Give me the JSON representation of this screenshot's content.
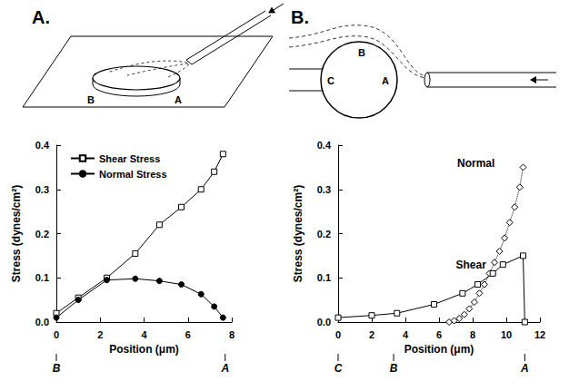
{
  "diagrams": [
    {
      "letter": "A.",
      "labels": [
        "B",
        "A"
      ]
    },
    {
      "letter": "B.",
      "labels": [
        "C",
        "B",
        "A"
      ]
    }
  ],
  "chart_data": [
    {
      "type": "line",
      "x_label": "Position (μm)",
      "y_label": "Stress (dynes/cm²)",
      "xlim": [
        0,
        8
      ],
      "xticks": [
        0,
        2,
        4,
        6,
        8
      ],
      "ylim": [
        0,
        0.4
      ],
      "yticks": [
        {
          "value": 0,
          "label": "0.0"
        },
        0.1,
        0.2,
        0.3,
        0.4
      ],
      "grid": false,
      "legend": "top-left",
      "series": [
        {
          "name": "Shear Stress",
          "color": "#000000",
          "marker": "open_square",
          "line_style": "solid",
          "x": [
            0,
            1,
            2.3,
            3.6,
            4.7,
            5.7,
            6.6,
            7.2,
            7.6
          ],
          "values": [
            0.02,
            0.055,
            0.1,
            0.155,
            0.22,
            0.26,
            0.3,
            0.34,
            0.38
          ]
        },
        {
          "name": "Normal Stress",
          "color": "#000000",
          "marker": "circle",
          "line_style": "solid",
          "x": [
            0,
            1,
            2.3,
            3.6,
            4.7,
            5.7,
            6.6,
            7.2,
            7.6
          ],
          "values": [
            0.01,
            0.05,
            0.095,
            0.098,
            0.093,
            0.085,
            0.063,
            0.035,
            0.01
          ]
        }
      ],
      "x_marks": [
        {
          "x": 0,
          "label": "B"
        },
        {
          "x": 7.7,
          "label": "A"
        }
      ]
    },
    {
      "type": "line",
      "x_label": "Position (μm)",
      "y_label": "Stress (dynes/cm²)",
      "xlim": [
        0,
        12
      ],
      "xticks": [
        0,
        2,
        4,
        6,
        8,
        10,
        12
      ],
      "ylim": [
        0,
        0.4
      ],
      "yticks": [
        {
          "value": 0,
          "label": "0.0"
        },
        0.1,
        0.2,
        0.3,
        0.4
      ],
      "grid": false,
      "series": [
        {
          "color": "#000000",
          "marker": "open_diamond",
          "line_style": "dotted",
          "x": [
            6.6,
            6.9,
            7.2,
            7.5,
            7.8,
            8.1,
            8.4,
            8.7,
            9.0,
            9.3,
            9.6,
            9.9,
            10.2,
            10.5,
            10.8,
            11.0
          ],
          "values": [
            0.0,
            0.003,
            0.008,
            0.017,
            0.03,
            0.045,
            0.065,
            0.085,
            0.11,
            0.135,
            0.16,
            0.19,
            0.225,
            0.26,
            0.305,
            0.35
          ]
        },
        {
          "color": "#000000",
          "marker": "open_square",
          "line_style": "solid",
          "x": [
            0,
            2,
            3.5,
            5.7,
            7.4,
            8.3,
            9.2,
            9.8,
            11.0,
            11.1
          ],
          "values": [
            0.01,
            0.015,
            0.02,
            0.04,
            0.065,
            0.085,
            0.11,
            0.13,
            0.15,
            0.0
          ]
        }
      ],
      "annotations": [
        {
          "text": "Normal",
          "x": 8.2,
          "y": 0.36
        },
        {
          "text": "Shear",
          "x": 7.9,
          "y": 0.13
        }
      ],
      "x_marks": [
        {
          "x": 0,
          "label": "C"
        },
        {
          "x": 3.3,
          "label": "B"
        },
        {
          "x": 11.1,
          "label": "A"
        }
      ]
    }
  ]
}
